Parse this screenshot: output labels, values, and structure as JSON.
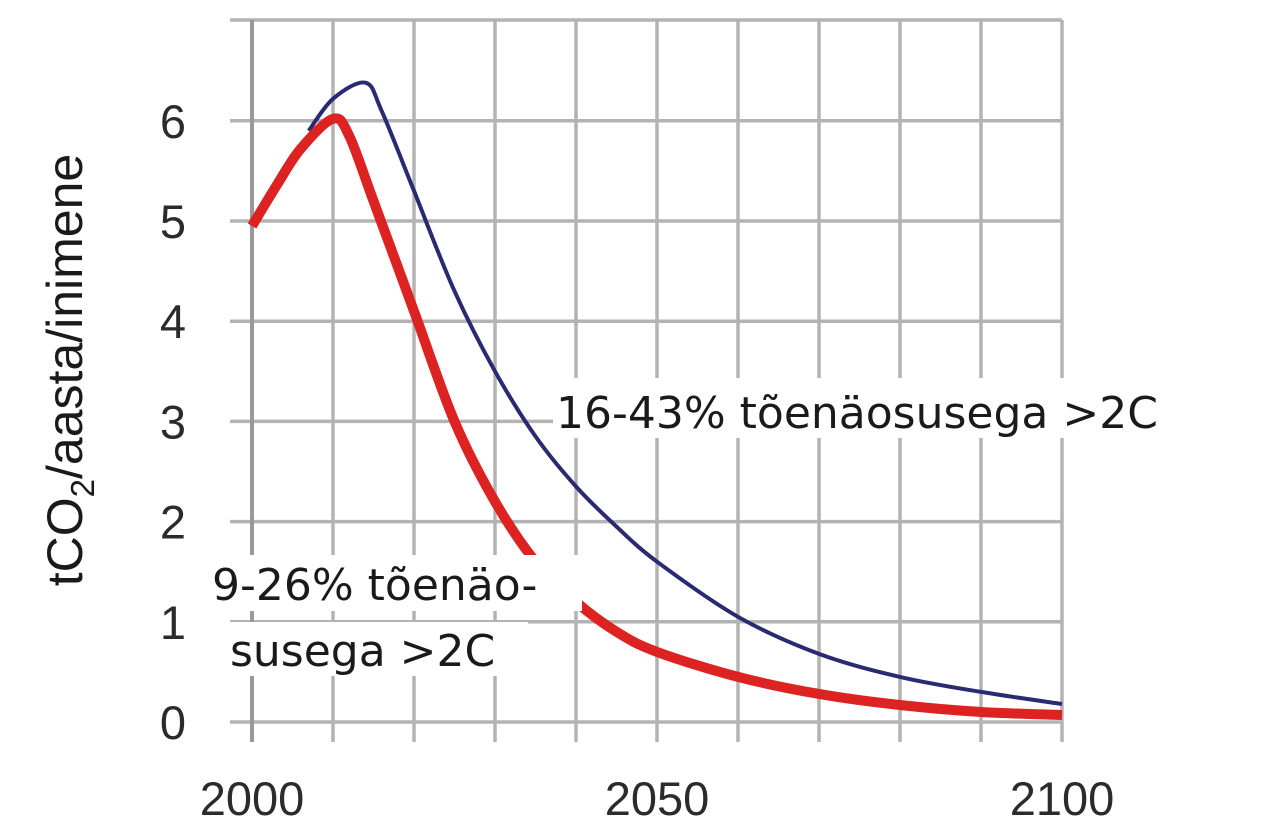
{
  "chart_data": {
    "type": "line",
    "xlim": [
      2000,
      2100
    ],
    "ylim": [
      0,
      7
    ],
    "x_ticks": [
      2000,
      2050,
      2100
    ],
    "y_ticks": [
      0,
      1,
      2,
      3,
      4,
      5,
      6
    ],
    "x_tick_labels": [
      "2000",
      "2050",
      "2100"
    ],
    "y_tick_labels": [
      "0",
      "1",
      "2",
      "3",
      "4",
      "5",
      "6"
    ],
    "grid": true,
    "ylabel": {
      "prefix": "tCO",
      "subscript": "2",
      "suffix": "/aasta/inimene"
    },
    "colors": {
      "series_higher": "#2a2a72",
      "series_lower": "#dd2222",
      "grid": "#b3b3b3",
      "axis": "#999999"
    },
    "series": [
      {
        "name": "16-43% tõenäosusega >2C",
        "color": "#2a2a72",
        "x": [
          2007,
          2010,
          2014,
          2016,
          2020,
          2025,
          2030,
          2035,
          2040,
          2045,
          2050,
          2060,
          2070,
          2080,
          2090,
          2100
        ],
        "y": [
          5.9,
          6.22,
          6.38,
          6.1,
          5.3,
          4.3,
          3.5,
          2.85,
          2.35,
          1.95,
          1.6,
          1.05,
          0.68,
          0.45,
          0.3,
          0.18
        ]
      },
      {
        "name": "9-26% tõenäosusega >2C",
        "color": "#dd2222",
        "x": [
          2000,
          2003,
          2006,
          2010,
          2012,
          2015,
          2020,
          2025,
          2030,
          2035,
          2040,
          2045,
          2050,
          2060,
          2070,
          2080,
          2090,
          2100
        ],
        "y": [
          4.95,
          5.35,
          5.72,
          6.02,
          5.85,
          5.2,
          4.1,
          3.0,
          2.2,
          1.6,
          1.2,
          0.9,
          0.7,
          0.45,
          0.28,
          0.17,
          0.1,
          0.07
        ]
      }
    ],
    "annotations": [
      {
        "id": "upper",
        "lines": [
          "16-43% tõenäosusega >2C"
        ]
      },
      {
        "id": "lower",
        "lines": [
          "9-26% tõenäo-",
          "susega >2C"
        ]
      }
    ]
  }
}
